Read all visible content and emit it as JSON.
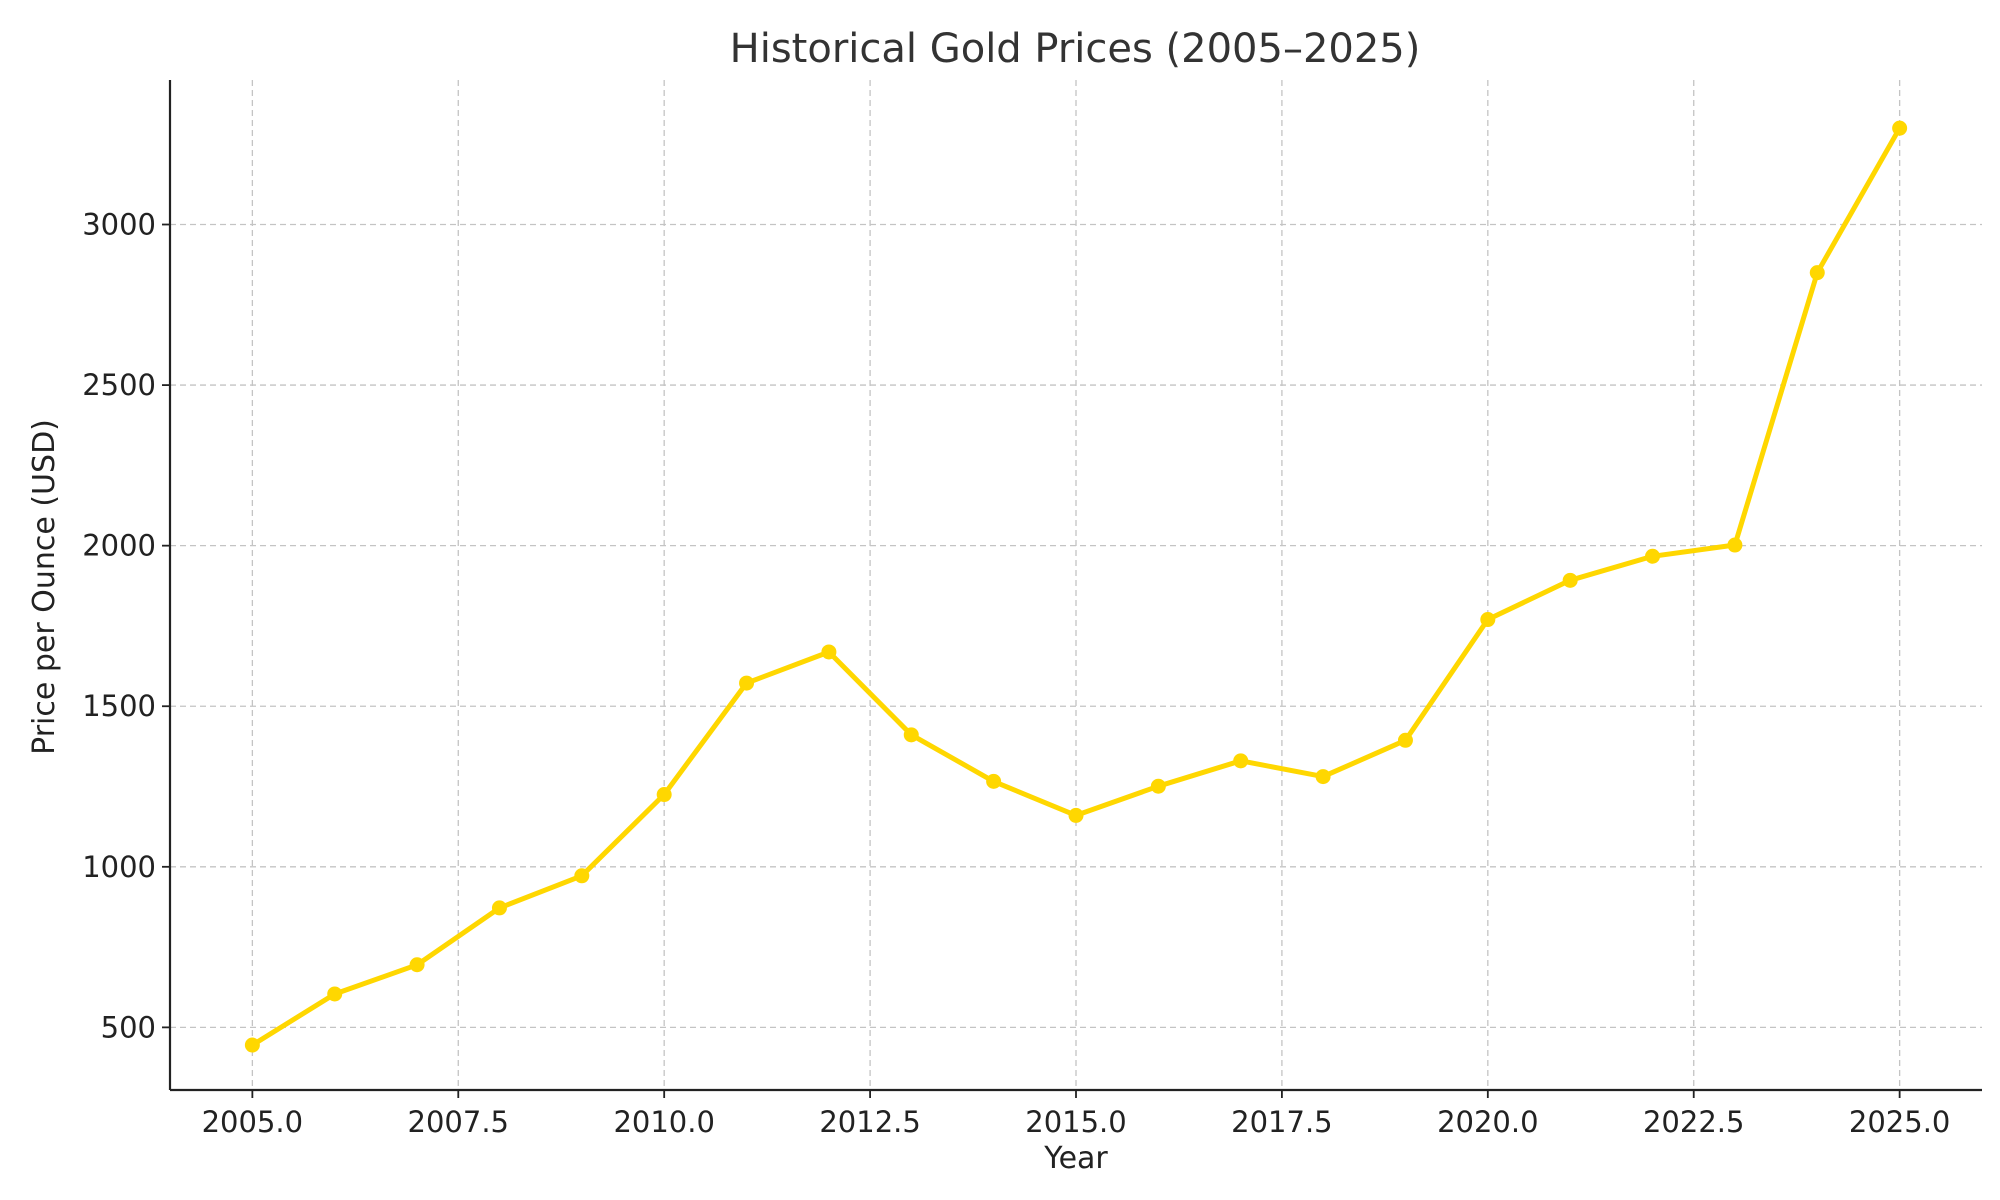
{
  "chart_data": {
    "type": "line",
    "title": "Historical Gold Prices (2005–2025)",
    "xlabel": "Year",
    "ylabel": "Price per Ounce (USD)",
    "xlim": [
      2004,
      2026
    ],
    "ylim": [
      305,
      3450
    ],
    "xticks": [
      2005.0,
      2007.5,
      2010.0,
      2012.5,
      2015.0,
      2017.5,
      2020.0,
      2022.5,
      2025.0
    ],
    "xtick_labels": [
      "2005.0",
      "2007.5",
      "2010.0",
      "2012.5",
      "2015.0",
      "2017.5",
      "2020.0",
      "2022.5",
      "2025.0"
    ],
    "yticks": [
      500,
      1000,
      1500,
      2000,
      2500,
      3000
    ],
    "ytick_labels": [
      "500",
      "1000",
      "1500",
      "2000",
      "2500",
      "3000"
    ],
    "grid": true,
    "color": "#FFD700",
    "series": [
      {
        "x": [
          2005,
          2006,
          2007,
          2008,
          2009,
          2010,
          2011,
          2012,
          2013,
          2014,
          2015,
          2016,
          2017,
          2018,
          2019,
          2020,
          2021,
          2022,
          2023,
          2024,
          2025
        ],
        "values": [
          445,
          604,
          695,
          872,
          972,
          1225,
          1572,
          1669,
          1411,
          1266,
          1160,
          1251,
          1330,
          1281,
          1394,
          1770,
          1892,
          1967,
          2002,
          2850,
          3300
        ]
      }
    ]
  }
}
